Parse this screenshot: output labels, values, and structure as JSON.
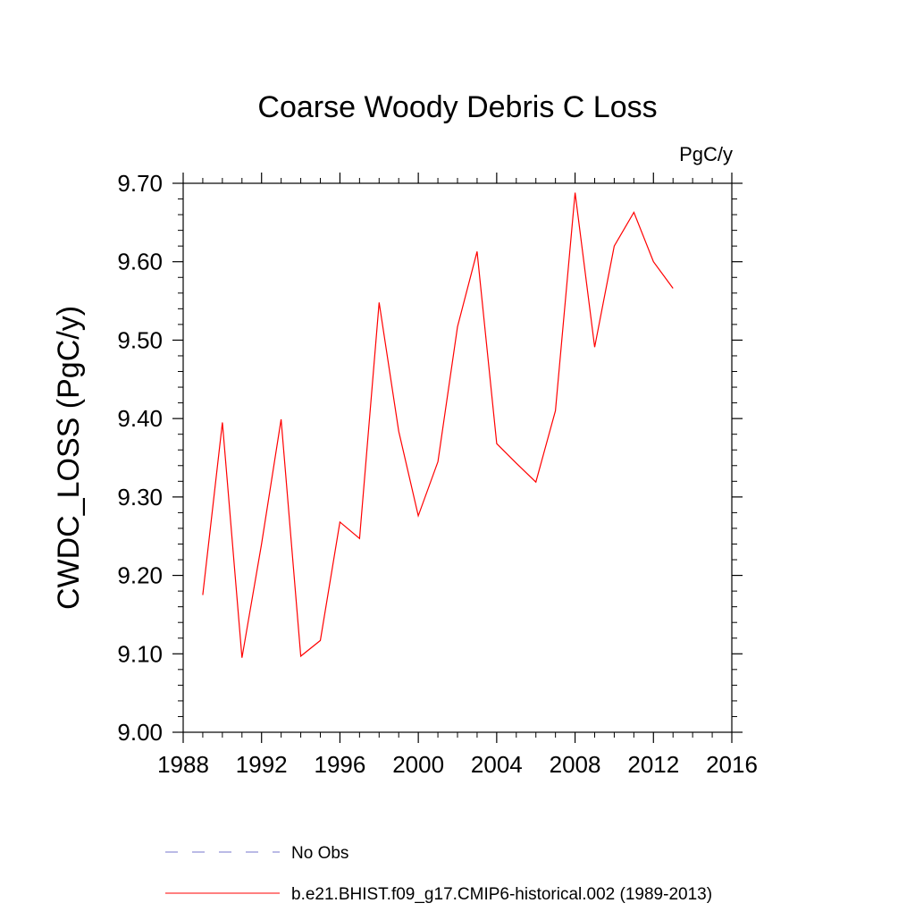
{
  "chart_data": {
    "type": "line",
    "title": "Coarse Woody Debris C Loss",
    "units": "PgC/y",
    "xlabel": "",
    "ylabel": "CWDC_LOSS  (PgC/y)",
    "xlim": [
      1988,
      2016
    ],
    "ylim": [
      9.0,
      9.7
    ],
    "x_ticks": [
      1988,
      1992,
      1996,
      2000,
      2004,
      2008,
      2012,
      2016
    ],
    "x_tick_labels": [
      "1988",
      "1992",
      "1996",
      "2000",
      "2004",
      "2008",
      "2012",
      "2016"
    ],
    "y_ticks": [
      9.0,
      9.1,
      9.2,
      9.3,
      9.4,
      9.5,
      9.6,
      9.7
    ],
    "y_tick_labels": [
      "9.00",
      "9.10",
      "9.20",
      "9.30",
      "9.40",
      "9.50",
      "9.60",
      "9.70"
    ],
    "grid": false,
    "legend_position": "bottom",
    "series": [
      {
        "name": "b.e21.BHIST.f09_g17.CMIP6-historical.002 (1989-2013)",
        "color": "#ff0000",
        "dash": "solid",
        "x": [
          1989,
          1990,
          1991,
          1992,
          1993,
          1994,
          1995,
          1996,
          1997,
          1998,
          1999,
          2000,
          2001,
          2002,
          2003,
          2004,
          2005,
          2006,
          2007,
          2008,
          2009,
          2010,
          2011,
          2012,
          2013
        ],
        "y": [
          9.175,
          9.395,
          9.095,
          9.24,
          9.399,
          9.097,
          9.117,
          9.268,
          9.247,
          9.548,
          9.384,
          9.276,
          9.345,
          9.517,
          9.613,
          9.368,
          9.343,
          9.319,
          9.41,
          9.688,
          9.491,
          9.62,
          9.663,
          9.6,
          9.566
        ]
      }
    ],
    "legend": [
      {
        "label": "No Obs",
        "color": "#7777cc",
        "dash": "dashed"
      },
      {
        "label": "b.e21.BHIST.f09_g17.CMIP6-historical.002 (1989-2013)",
        "color": "#ff0000",
        "dash": "solid"
      }
    ]
  }
}
